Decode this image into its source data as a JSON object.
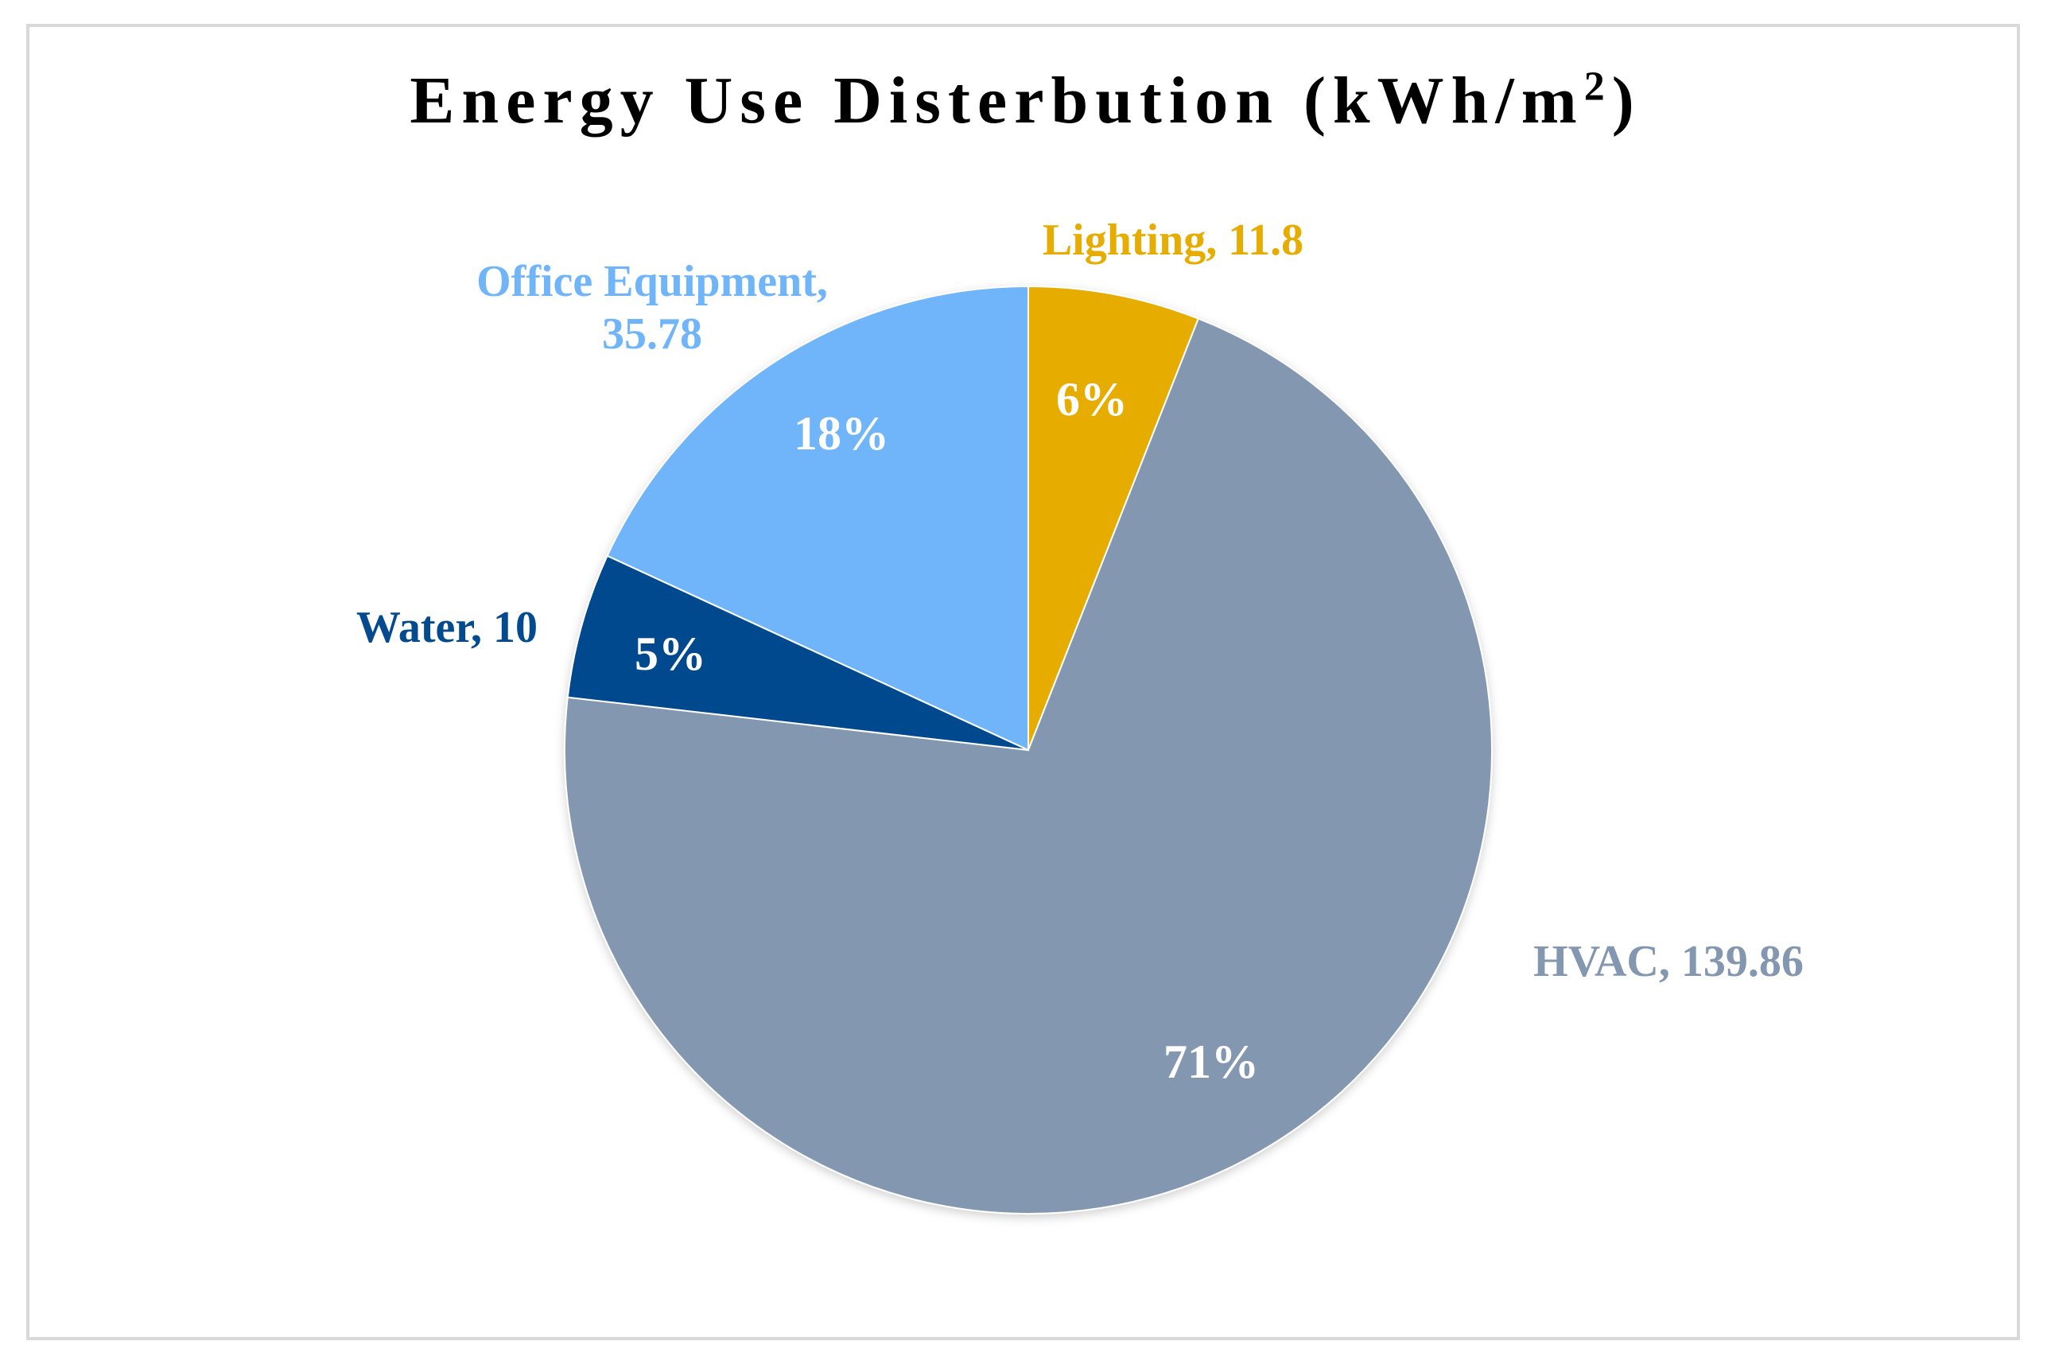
{
  "chart_data": {
    "type": "pie",
    "title": "Energy Use Disterbution (kWh/m",
    "title_superscript": "2",
    "title_suffix": ")",
    "slices": [
      {
        "name": "Lighting",
        "value": 11.8,
        "value_text": "11.8",
        "percent_label": "6%",
        "color": "#e6ac00"
      },
      {
        "name": "HVAC",
        "value": 139.86,
        "value_text": "139.86",
        "percent_label": "71%",
        "color": "#8497b0"
      },
      {
        "name": "Water",
        "value": 10,
        "value_text": "10",
        "percent_label": "5%",
        "color": "#034a8f"
      },
      {
        "name": "Office Equipment",
        "value": 35.78,
        "value_text": "35.78",
        "percent_label": "18%",
        "color": "#70b5fa"
      }
    ],
    "start": "12 o'clock",
    "direction": "clockwise"
  }
}
